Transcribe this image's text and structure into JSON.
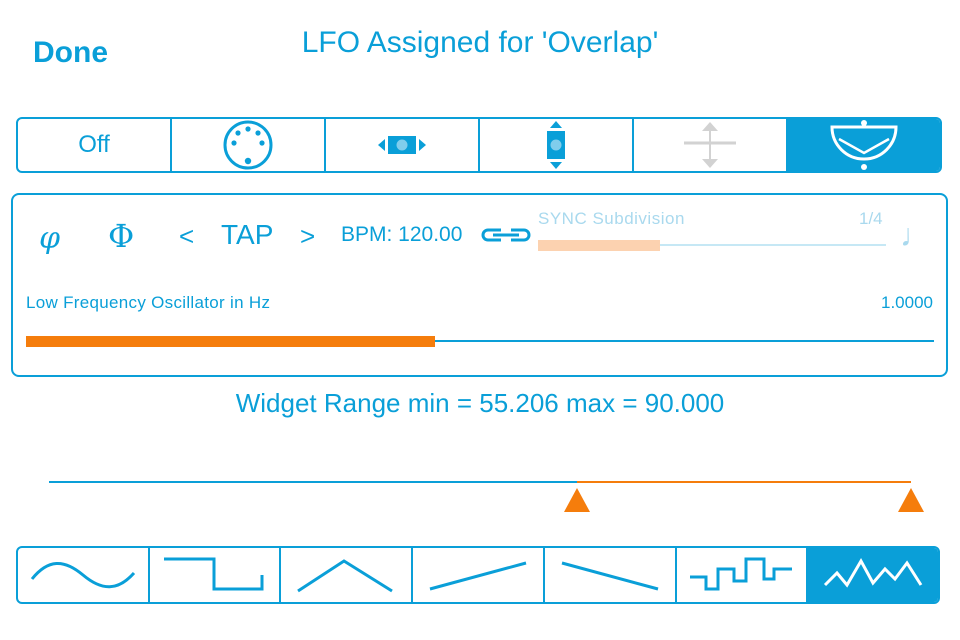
{
  "header": {
    "done_label": "Done",
    "title": "LFO Assigned for 'Overlap'"
  },
  "modes": [
    {
      "label": "Off",
      "icon": "off",
      "active": false
    },
    {
      "label": "",
      "icon": "midi-din-icon",
      "active": false
    },
    {
      "label": "",
      "icon": "horizontal-move-icon",
      "active": false
    },
    {
      "label": "",
      "icon": "vertical-move-icon",
      "active": false
    },
    {
      "label": "",
      "icon": "crosshair-move-icon",
      "active": false,
      "disabled": true
    },
    {
      "label": "",
      "icon": "lfo-bowl-icon",
      "active": true
    }
  ],
  "lfo": {
    "phase_icon_1": "φ",
    "phase_icon_2": "Φ",
    "prev_label": "<",
    "tap_label": "TAP",
    "next_label": ">",
    "bpm_text": "BPM: 120.00",
    "link_icon": "link-icon",
    "sync_label": "SYNC Subdivision",
    "sync_value": "1/4",
    "sync_fraction": 0.35,
    "note_icon": "♩",
    "freq_label": "Low Frequency Oscillator in Hz",
    "freq_value": "1.0000",
    "freq_fraction": 0.45
  },
  "range": {
    "text": "Widget Range min = 55.206 max = 90.000",
    "min_fraction": 0.612,
    "max_fraction": 1.0
  },
  "waveforms": [
    {
      "icon": "sine-wave-icon",
      "active": false
    },
    {
      "icon": "square-wave-icon",
      "active": false
    },
    {
      "icon": "triangle-wave-icon",
      "active": false
    },
    {
      "icon": "ramp-up-wave-icon",
      "active": false
    },
    {
      "icon": "ramp-down-wave-icon",
      "active": false
    },
    {
      "icon": "random-step-wave-icon",
      "active": false
    },
    {
      "icon": "noise-wave-icon",
      "active": true
    }
  ],
  "colors": {
    "accent": "#0a9fd8",
    "orange": "#f57d0c",
    "faded": "#a9d9ee"
  }
}
